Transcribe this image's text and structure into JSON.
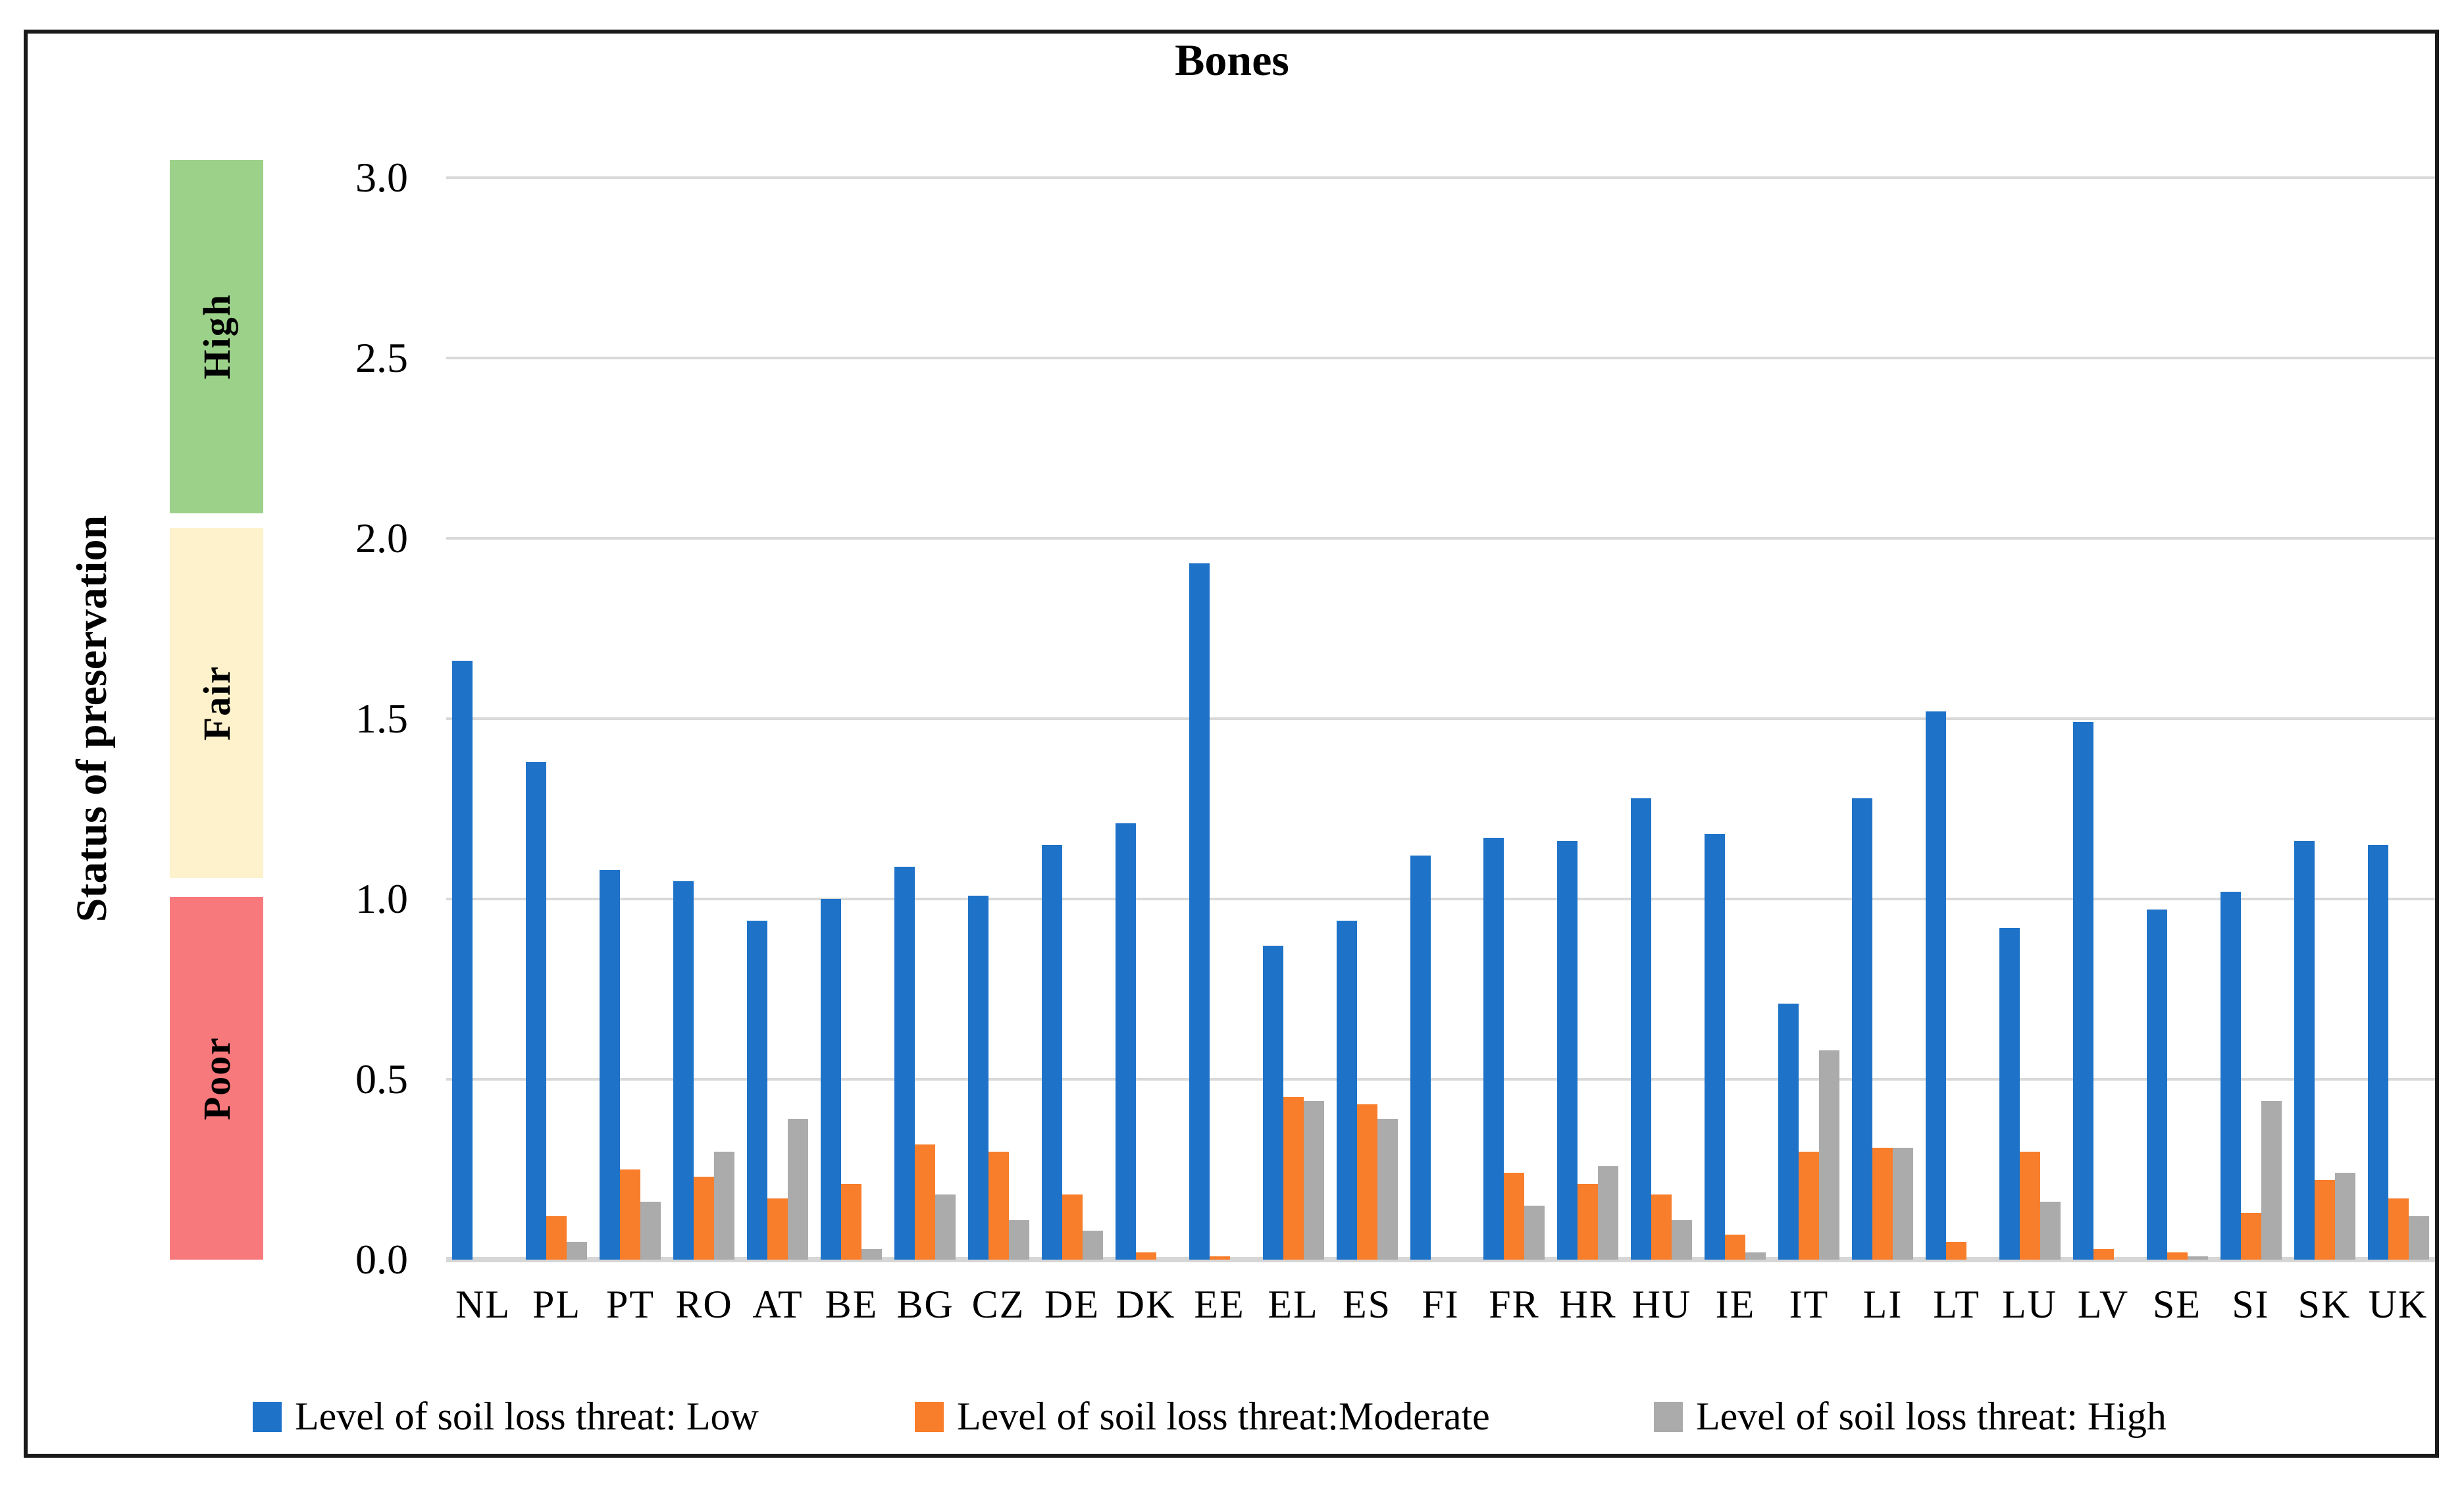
{
  "title": "Bones",
  "y_axis": {
    "title": "Status of preservation",
    "tick_labels": [
      "3.0",
      "2.5",
      "2.0",
      "1.5",
      "1.0",
      "0.5",
      "0.0"
    ]
  },
  "preservation_bands": [
    {
      "label": "High",
      "color": "#9cd18a",
      "from": 2.07,
      "to": 3.05
    },
    {
      "label": "Fair",
      "color": "#fdf2cc",
      "from": 1.06,
      "to": 2.03
    },
    {
      "label": "Poor",
      "color": "#f8797c",
      "from": 0.0,
      "to": 1.005
    }
  ],
  "legend": [
    {
      "label": "Level of soil loss threat: Low",
      "color": "#1e73c8",
      "x": 384
    },
    {
      "label": "Level of soil loss threat:Moderate",
      "color": "#f87e2b",
      "x": 1390
    },
    {
      "label": "Level of soil loss threat: High",
      "color": "#ababab",
      "x": 2513
    }
  ],
  "chart_data": {
    "type": "bar",
    "title": "Bones",
    "xlabel": "",
    "ylabel": "Status of preservation",
    "ylim": [
      0,
      3
    ],
    "ytick_step": 0.5,
    "grid": true,
    "legend_position": "bottom",
    "band_annotations": [
      {
        "label": "High",
        "range": [
          2.0,
          3.0
        ]
      },
      {
        "label": "Fair",
        "range": [
          1.0,
          2.0
        ]
      },
      {
        "label": "Poor",
        "range": [
          0.0,
          1.0
        ]
      }
    ],
    "categories": [
      "NL",
      "PL",
      "PT",
      "RO",
      "AT",
      "BE",
      "BG",
      "CZ",
      "DE",
      "DK",
      "EE",
      "EL",
      "ES",
      "FI",
      "FR",
      "HR",
      "HU",
      "IE",
      "IT",
      "LI",
      "LT",
      "LU",
      "LV",
      "SE",
      "SI",
      "SK",
      "UK"
    ],
    "series": [
      {
        "name": "Level of soil loss threat: Low",
        "key": "low",
        "color": "#1e73c8",
        "values": [
          1.66,
          1.38,
          1.08,
          1.05,
          0.94,
          1.0,
          1.09,
          1.01,
          1.15,
          1.21,
          1.93,
          0.87,
          0.94,
          1.12,
          1.17,
          1.16,
          1.28,
          1.18,
          0.71,
          1.28,
          1.52,
          0.92,
          1.49,
          0.97,
          1.02,
          1.16,
          1.15
        ]
      },
      {
        "name": "Level of soil loss threat:Moderate",
        "key": "moderate",
        "color": "#f87e2b",
        "values": [
          0,
          0.12,
          0.25,
          0.23,
          0.17,
          0.21,
          0.32,
          0.3,
          0.18,
          0.02,
          0.01,
          0.45,
          0.43,
          0,
          0.24,
          0.21,
          0.18,
          0.07,
          0.3,
          0.31,
          0.05,
          0.3,
          0.03,
          0.02,
          0.13,
          0.22,
          0.17
        ]
      },
      {
        "name": "Level of soil loss threat: High",
        "key": "high",
        "color": "#ababab",
        "values": [
          0,
          0.05,
          0.16,
          0.3,
          0.39,
          0.03,
          0.18,
          0.11,
          0.08,
          0,
          0,
          0.44,
          0.39,
          0,
          0.15,
          0.26,
          0.11,
          0.02,
          0.58,
          0.31,
          0,
          0.16,
          0,
          0.01,
          0.44,
          0.24,
          0.12
        ]
      }
    ]
  }
}
